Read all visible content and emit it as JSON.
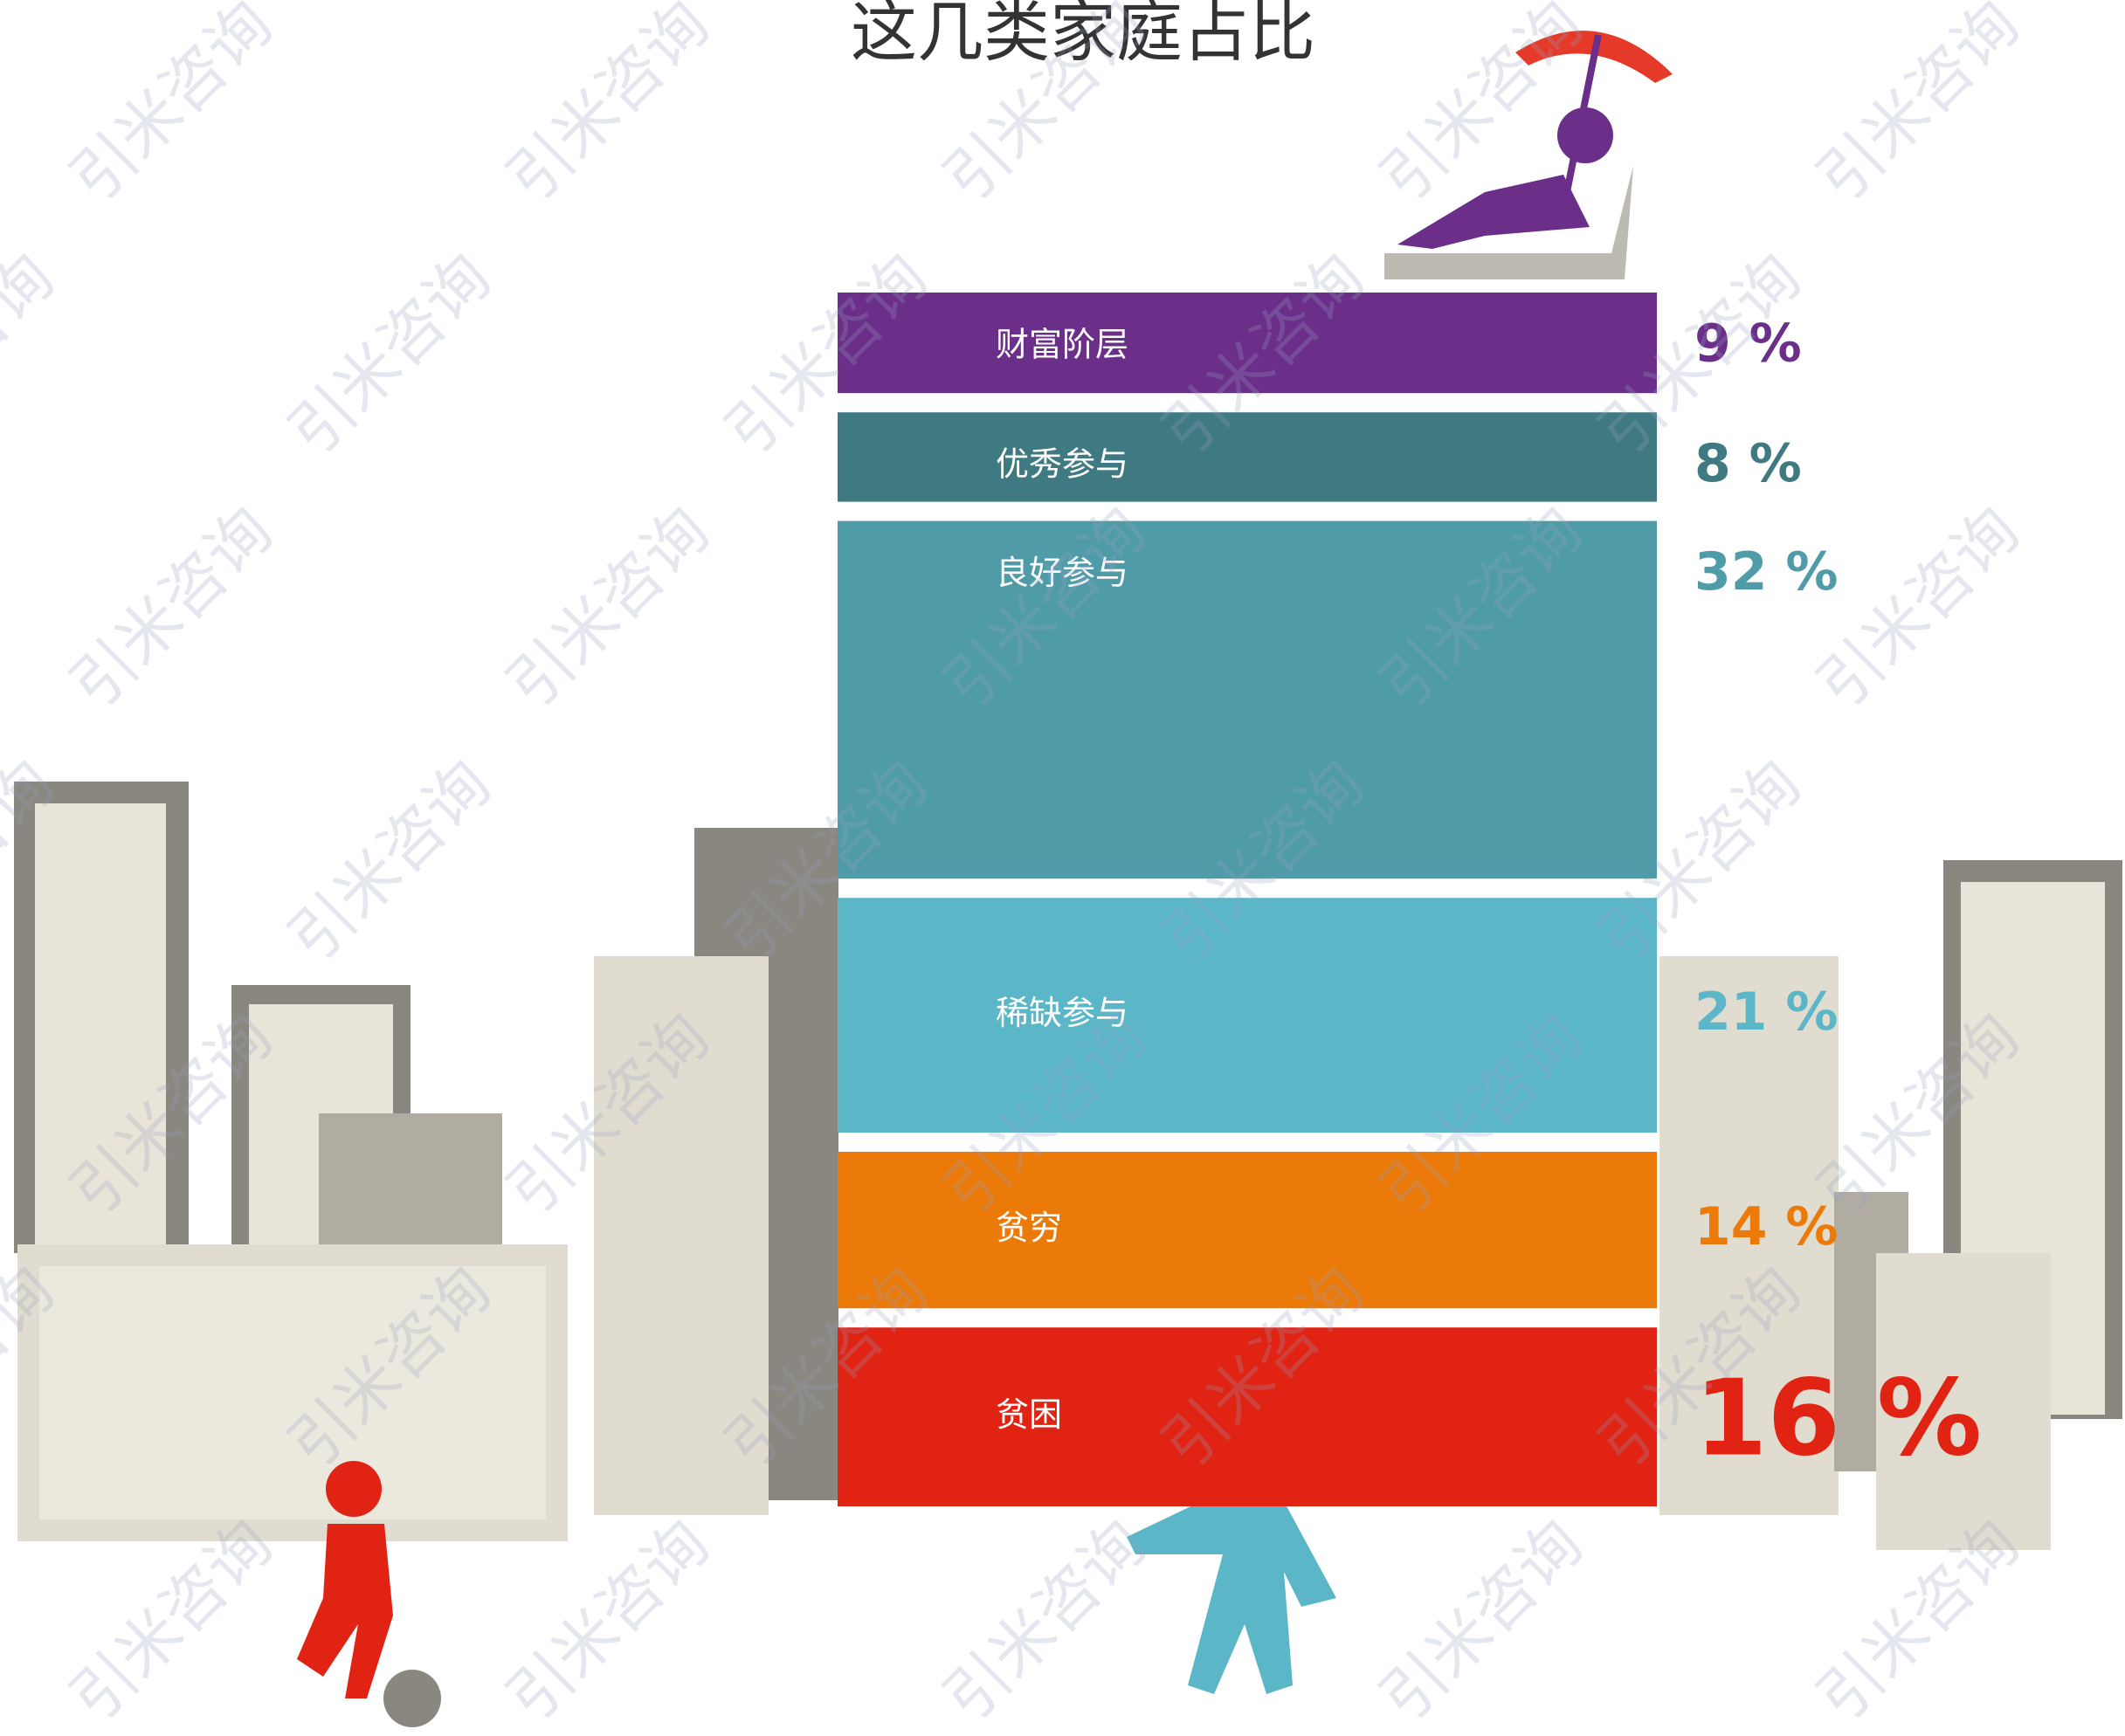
{
  "chart_data": {
    "type": "bar",
    "title": "这几类家庭占比",
    "categories": [
      "财富阶层",
      "优秀参与",
      "良好参与",
      "稀缺参与",
      "贫穷",
      "贫困"
    ],
    "values": [
      9,
      8,
      32,
      21,
      14,
      16
    ],
    "value_labels": [
      "9 %",
      "8 %",
      "32 %",
      "21 %",
      "14 %",
      "16 %"
    ],
    "colors": [
      "#6b2f8a",
      "#3f7a82",
      "#4f9ca8",
      "#5bb6c8",
      "#ec7a08",
      "#e02313"
    ]
  },
  "watermark": "引米咨询"
}
